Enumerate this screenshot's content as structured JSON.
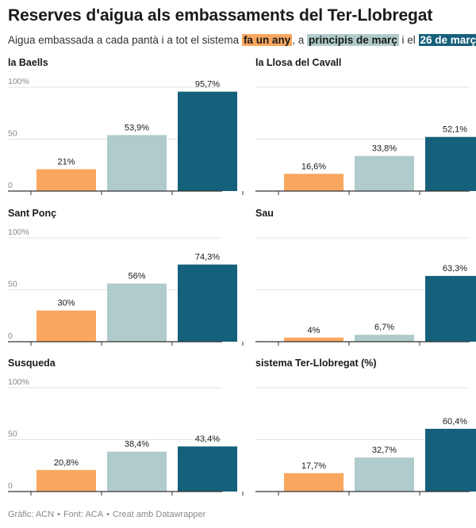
{
  "title": "Reserves d'aigua als embassaments del Ter-Llobregat",
  "subtitle": {
    "prefix": "Aigua embassada a cada pantà i a tot el sistema ",
    "legend_1": "fa un any",
    "sep_1": ", a ",
    "legend_2": "principis de març",
    "sep_2": " i el ",
    "legend_3": "26 de març"
  },
  "colors": {
    "fa_un_any": "#F9A75E",
    "principis_de_marc": "#B0CBCB",
    "26_de_marc": "#15607A",
    "grid": "#e3e3e3",
    "axis": "#333333",
    "text": "#1a1a1a",
    "tick": "#888888"
  },
  "chart_data": [
    {
      "type": "bar",
      "title": "la Baells",
      "categories": [
        "fa un any",
        "principis de març",
        "26 de març"
      ],
      "values": [
        21,
        53.9,
        95.7
      ],
      "labels": [
        "21%",
        "53,9%",
        "95,7%"
      ],
      "ylim": [
        0,
        100
      ],
      "yticks": [
        "0",
        "50",
        "100%"
      ],
      "grid": true
    },
    {
      "type": "bar",
      "title": "la Llosa del Cavall",
      "categories": [
        "fa un any",
        "principis de març",
        "26 de març"
      ],
      "values": [
        16.6,
        33.8,
        52.1
      ],
      "labels": [
        "16,6%",
        "33,8%",
        "52,1%"
      ],
      "ylim": [
        0,
        100
      ],
      "yticks": [],
      "grid": true
    },
    {
      "type": "bar",
      "title": "Sant Ponç",
      "categories": [
        "fa un any",
        "principis de març",
        "26 de març"
      ],
      "values": [
        30,
        56,
        74.3
      ],
      "labels": [
        "30%",
        "56%",
        "74,3%"
      ],
      "ylim": [
        0,
        100
      ],
      "yticks": [
        "0",
        "50",
        "100%"
      ],
      "grid": true
    },
    {
      "type": "bar",
      "title": "Sau",
      "categories": [
        "fa un any",
        "principis de març",
        "26 de març"
      ],
      "values": [
        4,
        6.7,
        63.3
      ],
      "labels": [
        "4%",
        "6,7%",
        "63,3%"
      ],
      "ylim": [
        0,
        100
      ],
      "yticks": [],
      "grid": true
    },
    {
      "type": "bar",
      "title": "Susqueda",
      "categories": [
        "fa un any",
        "principis de març",
        "26 de març"
      ],
      "values": [
        20.8,
        38.4,
        43.4
      ],
      "labels": [
        "20,8%",
        "38,4%",
        "43,4%"
      ],
      "ylim": [
        0,
        100
      ],
      "yticks": [
        "0",
        "50",
        "100%"
      ],
      "grid": true
    },
    {
      "type": "bar",
      "title": "sistema Ter-Llobregat (%)",
      "categories": [
        "fa un any",
        "principis de març",
        "26 de març"
      ],
      "values": [
        17.7,
        32.7,
        60.4
      ],
      "labels": [
        "17,7%",
        "32,7%",
        "60,4%"
      ],
      "ylim": [
        0,
        100
      ],
      "yticks": [],
      "grid": true
    }
  ],
  "footer": {
    "chart_by": "Gràfic: ACN",
    "source": "Font: ACA",
    "made_with": "Creat amb Datawrapper"
  }
}
